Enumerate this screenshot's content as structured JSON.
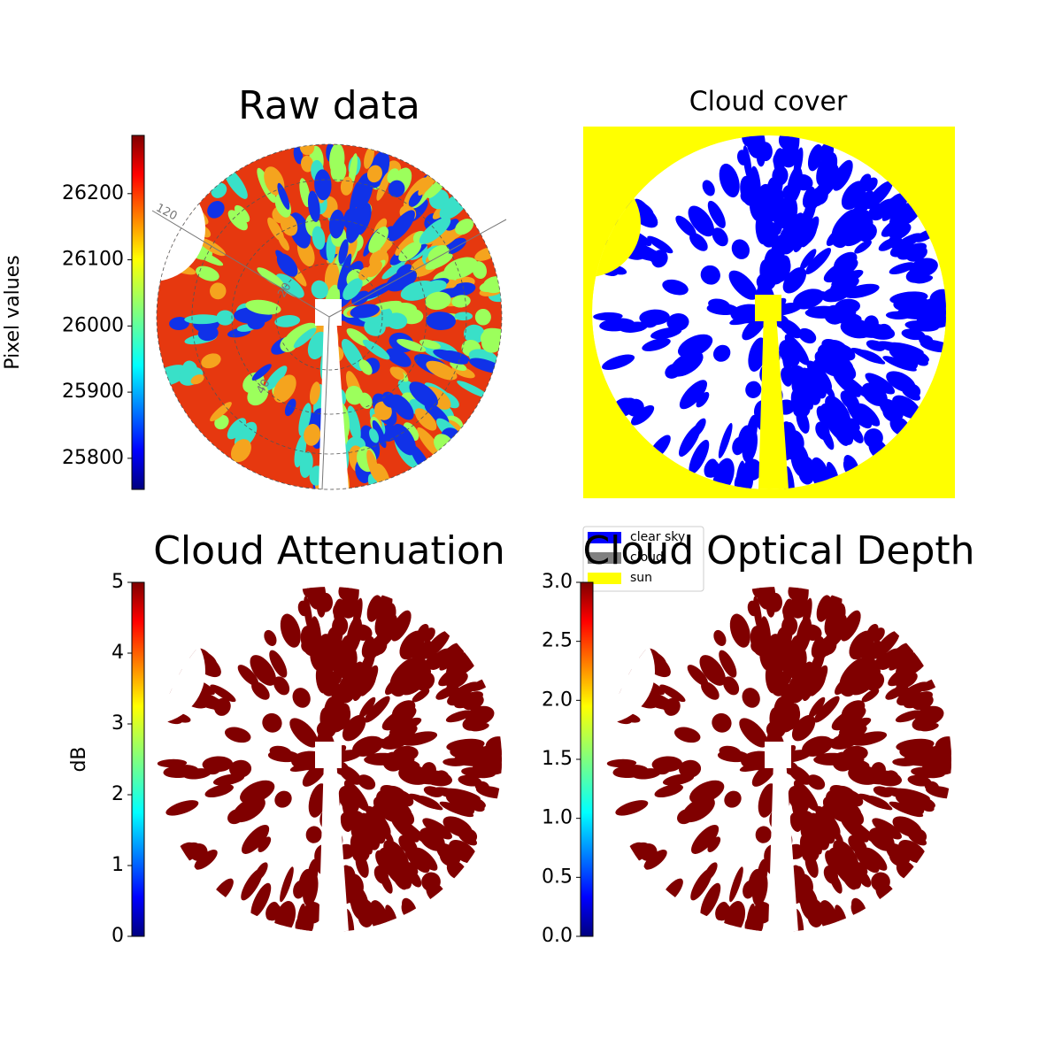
{
  "chart_data": [
    {
      "type": "image",
      "title": "Raw data",
      "colorbar": {
        "label": "Pixel values",
        "cmap": "jet",
        "lim": [
          25753,
          26288
        ],
        "ticks": [
          25800,
          25900,
          26000,
          26100,
          26200
        ]
      },
      "polar_labels": [
        "120",
        "20",
        "40"
      ]
    },
    {
      "type": "image",
      "title": "Cloud cover",
      "series": [
        {
          "name": "clear sky",
          "color": "#0000ff"
        },
        {
          "name": "cloud",
          "color": "#808080"
        },
        {
          "name": "sun",
          "color": "#ffff00"
        }
      ]
    },
    {
      "type": "image",
      "title": "Cloud Attenuation",
      "colorbar": {
        "label": "dB",
        "cmap": "jet",
        "lim": [
          0,
          5
        ],
        "ticks": [
          0,
          1,
          2,
          3,
          4,
          5
        ]
      }
    },
    {
      "type": "image",
      "title": "Cloud Optical Depth",
      "colorbar": {
        "cmap": "jet",
        "lim": [
          0,
          3
        ],
        "ticks": [
          {
            "value": 0,
            "label": "0.0"
          },
          {
            "value": 0.5,
            "label": "0.5"
          },
          {
            "value": 1,
            "label": "1.0"
          },
          {
            "value": 1.5,
            "label": "1.5"
          },
          {
            "value": 2,
            "label": "2.0"
          },
          {
            "value": 2.5,
            "label": "2.5"
          },
          {
            "value": 3,
            "label": "3.0"
          }
        ]
      }
    }
  ]
}
